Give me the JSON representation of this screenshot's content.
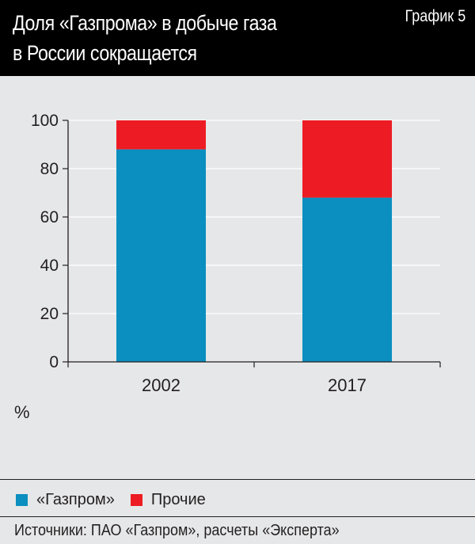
{
  "header": {
    "title_line1": "Доля «Газпрома» в добыче газа",
    "title_line2": "в России сокращается",
    "chart_label": "График 5"
  },
  "colors": {
    "background": "#e6e7e8",
    "header_bg": "#000000",
    "gazprom": "#0a8fc0",
    "other": "#ed1c24",
    "axis": "#231f20",
    "grid": "#ffffff"
  },
  "chart_data": {
    "type": "bar",
    "stacked": true,
    "categories": [
      "2002",
      "2017"
    ],
    "series": [
      {
        "name": "«Газпром»",
        "values": [
          88,
          68
        ]
      },
      {
        "name": "Прочие",
        "values": [
          12,
          32
        ]
      }
    ],
    "ylabel": "%",
    "ylim": [
      0,
      100
    ],
    "yticks": [
      0,
      20,
      40,
      60,
      80,
      100
    ],
    "grid": true,
    "legend_position": "bottom"
  },
  "source": "Источники: ПАО «Газпром», расчеты «Эксперта»"
}
